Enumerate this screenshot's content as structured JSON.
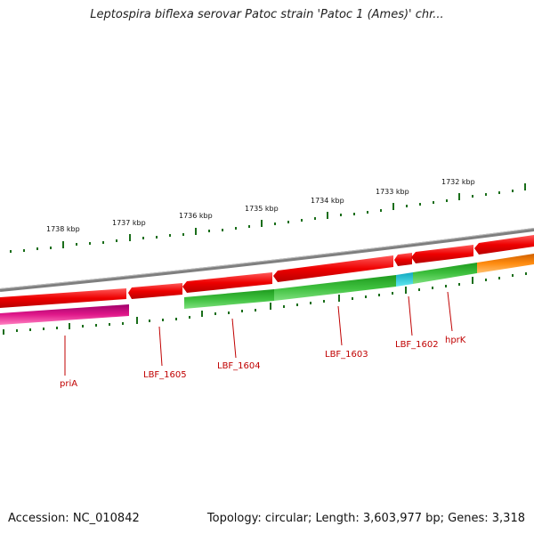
{
  "title": "Leptospira biflexa serovar Patoc strain 'Patoc 1 (Ames)' chr...",
  "footer": {
    "accession": "Accession: NC_010842",
    "summary": "Topology: circular; Length: 3,603,977 bp; Genes: 3,318"
  },
  "scale_labels": [
    "1738 kbp",
    "1737 kbp",
    "1736 kbp",
    "1735 kbp",
    "1734 kbp",
    "1733 kbp",
    "1732 kbp"
  ],
  "gene_labels": [
    "priA",
    "LBF_1605",
    "LBF_1604",
    "LBF_1603",
    "LBF_1602",
    "hprK"
  ],
  "colors": {
    "backbone": "#7f7f7f",
    "forward_gene": "#ee0000",
    "reverse_gene": "#22b022",
    "pria_gene": "#d0107a",
    "small_gene": "#20c8d8",
    "orange_gene": "#ff8800",
    "tick": "#1a6e1a",
    "gene_label": "#c00000"
  }
}
